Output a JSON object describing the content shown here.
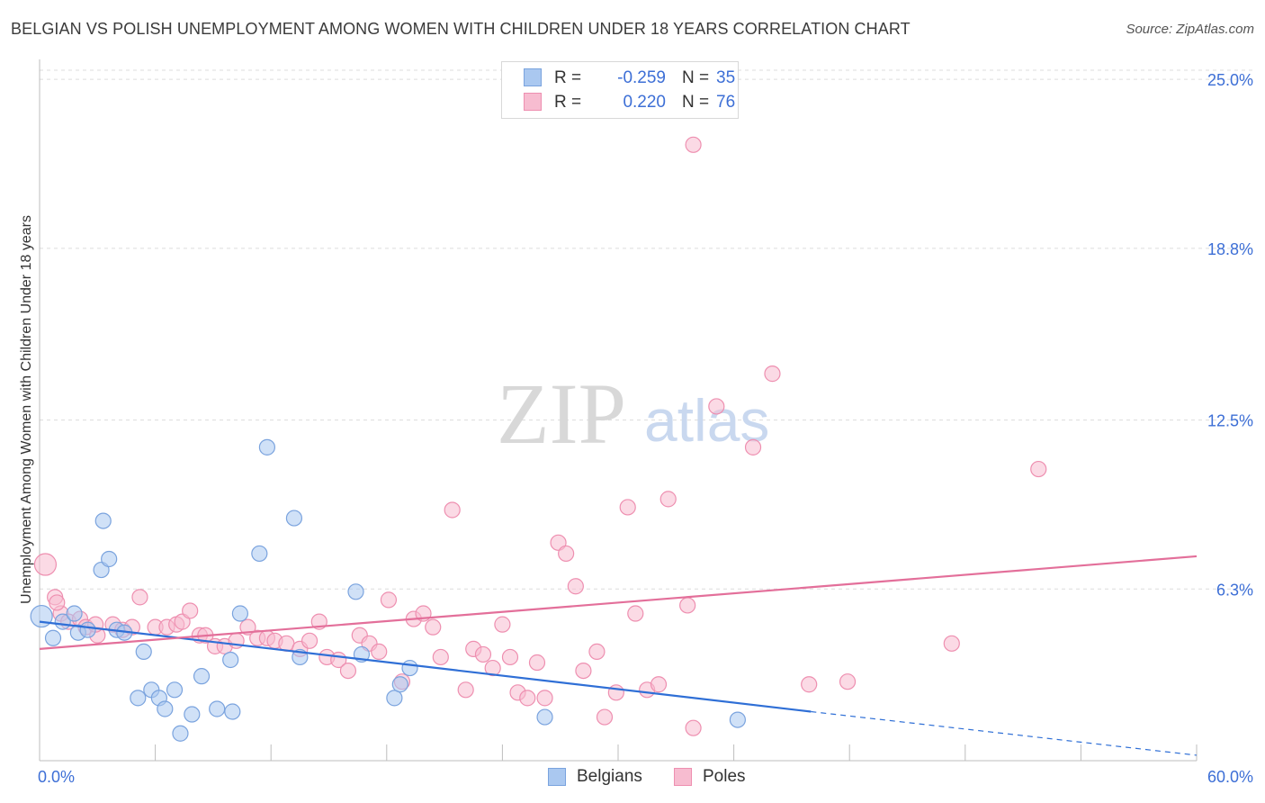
{
  "title": "BELGIAN VS POLISH UNEMPLOYMENT AMONG WOMEN WITH CHILDREN UNDER 18 YEARS CORRELATION CHART",
  "source": "Source: ZipAtlas.com",
  "watermark": {
    "zip": "ZIP",
    "atlas": "atlas"
  },
  "legend_top": [
    {
      "r_label": "R =",
      "r_value": "-0.259",
      "n_label": "N =",
      "n_value": "35",
      "color": "#aac8f0",
      "border": "#7aa3de"
    },
    {
      "r_label": "R =",
      "r_value": "0.220",
      "n_label": "N =",
      "n_value": "76",
      "color": "#f7bcd0",
      "border": "#ee8fb0"
    }
  ],
  "legend_bottom": [
    {
      "label": "Belgians",
      "color": "#aac8f0",
      "border": "#7aa3de"
    },
    {
      "label": "Poles",
      "color": "#f7bcd0",
      "border": "#ee8fb0"
    }
  ],
  "chart_data": {
    "type": "scatter",
    "title": "BELGIAN VS POLISH UNEMPLOYMENT AMONG WOMEN WITH CHILDREN UNDER 18 YEARS CORRELATION CHART",
    "xlabel": "",
    "ylabel": "Unemployment Among Women with Children Under 18 years",
    "xlim": [
      0,
      60
    ],
    "ylim": [
      0,
      25.6
    ],
    "x_tick_labels": [
      "0.0%",
      "60.0%"
    ],
    "y_ticks": [
      6.3,
      12.5,
      18.8,
      25.0
    ],
    "y_tick_labels": [
      "6.3%",
      "12.5%",
      "18.8%",
      "25.0%"
    ],
    "grid": true,
    "legend_position": "top-center",
    "series": [
      {
        "name": "Belgians",
        "color": "#7aa3de",
        "fill": "#aac8f0",
        "trend_color": "#2f6fd6",
        "trend": {
          "x0": 0,
          "y0": 5.1,
          "x1": 40,
          "y1": 1.8,
          "dash_x1": 60,
          "dash_y1": 0.2
        },
        "points": [
          [
            0.1,
            5.3
          ],
          [
            0.7,
            4.5
          ],
          [
            1.2,
            5.1
          ],
          [
            1.8,
            5.4
          ],
          [
            2.0,
            4.7
          ],
          [
            2.5,
            4.8
          ],
          [
            3.2,
            7.0
          ],
          [
            3.3,
            8.8
          ],
          [
            3.6,
            7.4
          ],
          [
            4.0,
            4.8
          ],
          [
            4.4,
            4.7
          ],
          [
            5.1,
            2.3
          ],
          [
            5.4,
            4.0
          ],
          [
            5.8,
            2.6
          ],
          [
            6.2,
            2.3
          ],
          [
            6.5,
            1.9
          ],
          [
            7.0,
            2.6
          ],
          [
            7.3,
            1.0
          ],
          [
            7.9,
            1.7
          ],
          [
            8.4,
            3.1
          ],
          [
            9.2,
            1.9
          ],
          [
            9.9,
            3.7
          ],
          [
            10.0,
            1.8
          ],
          [
            10.4,
            5.4
          ],
          [
            11.4,
            7.6
          ],
          [
            11.8,
            11.5
          ],
          [
            13.2,
            8.9
          ],
          [
            13.5,
            3.8
          ],
          [
            16.4,
            6.2
          ],
          [
            16.7,
            3.9
          ],
          [
            18.4,
            2.3
          ],
          [
            18.7,
            2.8
          ],
          [
            19.2,
            3.4
          ],
          [
            26.2,
            1.6
          ],
          [
            36.2,
            1.5
          ]
        ]
      },
      {
        "name": "Poles",
        "color": "#ee8fb0",
        "fill": "#f7bcd0",
        "trend_color": "#e36f9a",
        "trend": {
          "x0": 0,
          "y0": 4.1,
          "x1": 60,
          "y1": 7.5
        },
        "points": [
          [
            0.3,
            7.2
          ],
          [
            0.8,
            6.0
          ],
          [
            1.1,
            5.4
          ],
          [
            1.5,
            5.1
          ],
          [
            2.1,
            5.2
          ],
          [
            2.4,
            4.9
          ],
          [
            3.0,
            4.6
          ],
          [
            3.8,
            5.0
          ],
          [
            4.3,
            4.8
          ],
          [
            4.8,
            4.9
          ],
          [
            5.2,
            6.0
          ],
          [
            6.0,
            4.9
          ],
          [
            6.6,
            4.9
          ],
          [
            7.1,
            5.0
          ],
          [
            7.4,
            5.1
          ],
          [
            7.8,
            5.5
          ],
          [
            8.3,
            4.6
          ],
          [
            8.6,
            4.6
          ],
          [
            9.1,
            4.2
          ],
          [
            9.6,
            4.2
          ],
          [
            10.2,
            4.4
          ],
          [
            10.8,
            4.9
          ],
          [
            11.3,
            4.5
          ],
          [
            11.8,
            4.5
          ],
          [
            12.2,
            4.4
          ],
          [
            12.8,
            4.3
          ],
          [
            13.5,
            4.1
          ],
          [
            14.0,
            4.4
          ],
          [
            14.5,
            5.1
          ],
          [
            14.9,
            3.8
          ],
          [
            15.5,
            3.7
          ],
          [
            16.0,
            3.3
          ],
          [
            16.6,
            4.6
          ],
          [
            17.1,
            4.3
          ],
          [
            17.6,
            4.0
          ],
          [
            18.1,
            5.9
          ],
          [
            18.8,
            2.9
          ],
          [
            19.4,
            5.2
          ],
          [
            19.9,
            5.4
          ],
          [
            20.4,
            4.9
          ],
          [
            20.8,
            3.8
          ],
          [
            21.4,
            9.2
          ],
          [
            22.1,
            2.6
          ],
          [
            22.5,
            4.1
          ],
          [
            23.0,
            3.9
          ],
          [
            23.5,
            3.4
          ],
          [
            24.0,
            5.0
          ],
          [
            24.4,
            3.8
          ],
          [
            24.8,
            2.5
          ],
          [
            25.3,
            2.3
          ],
          [
            25.8,
            3.6
          ],
          [
            26.2,
            2.3
          ],
          [
            26.9,
            8.0
          ],
          [
            27.3,
            7.6
          ],
          [
            27.8,
            6.4
          ],
          [
            28.2,
            3.3
          ],
          [
            28.9,
            4.0
          ],
          [
            29.3,
            1.6
          ],
          [
            29.9,
            2.5
          ],
          [
            30.5,
            9.3
          ],
          [
            30.9,
            5.4
          ],
          [
            31.5,
            2.6
          ],
          [
            32.1,
            2.8
          ],
          [
            32.6,
            9.6
          ],
          [
            33.6,
            5.7
          ],
          [
            33.9,
            22.6
          ],
          [
            33.9,
            1.2
          ],
          [
            35.1,
            13.0
          ],
          [
            37.0,
            11.5
          ],
          [
            38.0,
            14.2
          ],
          [
            39.9,
            2.8
          ],
          [
            41.9,
            2.9
          ],
          [
            47.3,
            4.3
          ],
          [
            51.8,
            10.7
          ],
          [
            0.9,
            5.8
          ],
          [
            2.9,
            5.0
          ]
        ]
      }
    ]
  }
}
